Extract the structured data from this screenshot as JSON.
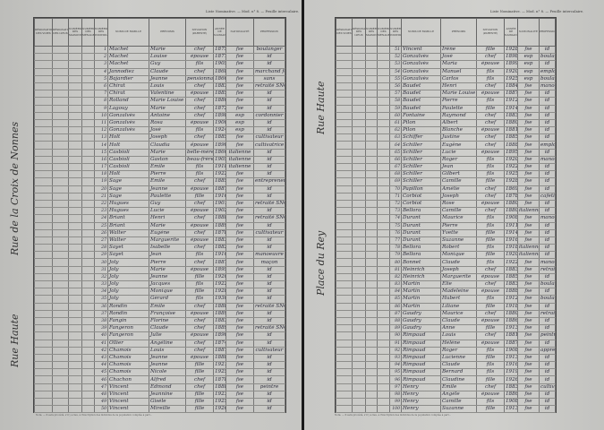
{
  "running_head": "Liste Nominative. — Mod. n° 8. — Feuille intercalaire.",
  "columns": [
    "Désignation des voies",
    "Désignation des lieux",
    "Numéros des maisons",
    "Numéros des ménages",
    "Numéros des individus",
    "Noms de famille",
    "Prénoms",
    "Situation (parenté)",
    "Année de naissance",
    "Nationalité",
    "Profession"
  ],
  "footnote": "Nota. — Il sera procédé, s'il y a lieu, à l'inscription des individus de la population comptée à part...",
  "left_page": {
    "streets": [
      "Rue de la Croix de Nonnes",
      "Rue Haute"
    ],
    "rows": [
      [
        "1",
        "Machet",
        "Marie",
        "chef",
        "1875",
        "fse",
        "boulanger"
      ],
      [
        "2",
        "Machet",
        "Louise",
        "épouse",
        "1877",
        "fse",
        "id"
      ],
      [
        "3",
        "Machet",
        "Guy",
        "fils",
        "1905",
        "fse",
        "id"
      ],
      [
        "4",
        "Jannodiez",
        "Claude",
        "chef",
        "1868",
        "fse",
        "marchand forain"
      ],
      [
        "5",
        "Bajardier",
        "Jeanne",
        "pensionnaire",
        "1866",
        "fse",
        "sans"
      ],
      [
        "6",
        "Chirat",
        "Louis",
        "chef",
        "1883",
        "fse",
        "retraité SNCF"
      ],
      [
        "7",
        "Chirat",
        "Valentine",
        "épouse",
        "1885",
        "fse",
        "id"
      ],
      [
        "8",
        "Rolland",
        "Marie Louise",
        "chef",
        "1880",
        "fse",
        "id"
      ],
      [
        "9",
        "Lagouy",
        "Marie",
        "chef",
        "1872",
        "fse",
        "id"
      ],
      [
        "10",
        "Gonzalvès",
        "Antoine",
        "chef",
        "1898",
        "esp",
        "cordonnier"
      ],
      [
        "11",
        "Gonzalvès",
        "Rosa",
        "épouse",
        "1900",
        "esp",
        "id"
      ],
      [
        "12",
        "Gonzalvès",
        "José",
        "fils",
        "1924",
        "esp",
        "id"
      ],
      [
        "13",
        "Holt",
        "Joseph",
        "chef",
        "1885",
        "fse",
        "cultivateur"
      ],
      [
        "14",
        "Holt",
        "Claudia",
        "épouse",
        "1890",
        "fse",
        "cultivatrice"
      ],
      [
        "15",
        "Casbioli",
        "Marie",
        "belle-mère",
        "1866",
        "italienne",
        "id"
      ],
      [
        "16",
        "Casbioli",
        "Gaston",
        "beau-frère",
        "1905",
        "italienne",
        "id"
      ],
      [
        "17",
        "Casbioli",
        "Emile",
        "fils",
        "1918",
        "italienne",
        "id"
      ],
      [
        "18",
        "Holt",
        "Pierre",
        "fils",
        "1922",
        "fse",
        "id"
      ],
      [
        "19",
        "Sage",
        "Emile",
        "chef",
        "1885",
        "fse",
        "entrepreneur"
      ],
      [
        "20",
        "Sage",
        "Jeanne",
        "épouse",
        "1887",
        "fse",
        "id"
      ],
      [
        "21",
        "Sage",
        "Paulette",
        "fille",
        "1916",
        "fse",
        "id"
      ],
      [
        "22",
        "Hugues",
        "Guy",
        "chef",
        "1901",
        "fse",
        "retraité SNCF"
      ],
      [
        "23",
        "Hugues",
        "Lucie",
        "épouse",
        "1902",
        "fse",
        "id"
      ],
      [
        "24",
        "Briant",
        "Henri",
        "chef",
        "1888",
        "fse",
        "retraité SNCF"
      ],
      [
        "25",
        "Briant",
        "Marie",
        "épouse",
        "1889",
        "fse",
        "id"
      ],
      [
        "26",
        "Walter",
        "Eugène",
        "chef",
        "1878",
        "fse",
        "cultivateur"
      ],
      [
        "27",
        "Walter",
        "Marguerite",
        "épouse",
        "1883",
        "fse",
        "id"
      ],
      [
        "28",
        "Sayet",
        "Isabelle",
        "chef",
        "1882",
        "fse",
        "id"
      ],
      [
        "29",
        "Sayet",
        "Jean",
        "fils",
        "1910",
        "fse",
        "manoeuvre"
      ],
      [
        "30",
        "Joly",
        "Pierre",
        "chef",
        "1887",
        "fse",
        "maçon"
      ],
      [
        "31",
        "Joly",
        "Marie",
        "épouse",
        "1895",
        "fse",
        "id"
      ],
      [
        "32",
        "Joly",
        "Jeanne",
        "fille",
        "1920",
        "fse",
        "id"
      ],
      [
        "33",
        "Joly",
        "Jacques",
        "fils",
        "1922",
        "fse",
        "id"
      ],
      [
        "34",
        "Joly",
        "Monique",
        "fille",
        "1928",
        "fse",
        "id"
      ],
      [
        "35",
        "Joly",
        "Gérard",
        "fils",
        "1930",
        "fse",
        "id"
      ],
      [
        "36",
        "Rondin",
        "Emile",
        "chef",
        "1888",
        "fse",
        "retraité SNCF"
      ],
      [
        "37",
        "Rondin",
        "Françoise",
        "épouse",
        "1889",
        "fse",
        "id"
      ],
      [
        "38",
        "Fangin",
        "Florine",
        "chef",
        "1883",
        "fse",
        "id"
      ],
      [
        "39",
        "Fangeron",
        "Claude",
        "chef",
        "1889",
        "fse",
        "retraité SNCF"
      ],
      [
        "40",
        "Fangeron",
        "Julie",
        "épouse",
        "1890",
        "fse",
        "id"
      ],
      [
        "41",
        "Ollier",
        "Angéline",
        "chef",
        "1874",
        "fse",
        "id"
      ],
      [
        "42",
        "Chamois",
        "Louis",
        "chef",
        "1887",
        "fse",
        "cultivateur"
      ],
      [
        "43",
        "Chamois",
        "Jeanne",
        "épouse",
        "1888",
        "fse",
        "id"
      ],
      [
        "44",
        "Chamois",
        "Jeanne",
        "fille",
        "1921",
        "fse",
        "id"
      ],
      [
        "45",
        "Chamois",
        "Nicole",
        "fille",
        "1925",
        "fse",
        "id"
      ],
      [
        "46",
        "Chachon",
        "Alfred",
        "chef",
        "1878",
        "fse",
        "id"
      ],
      [
        "47",
        "Vincent",
        "Edmond",
        "chef",
        "1888",
        "fse",
        "peintre"
      ],
      [
        "48",
        "Vincent",
        "Jeannine",
        "fille",
        "1923",
        "fse",
        "id"
      ],
      [
        "49",
        "Vincent",
        "Gisèle",
        "fille",
        "1925",
        "fse",
        "id"
      ],
      [
        "50",
        "Vincent",
        "Mireille",
        "fille",
        "1926",
        "fse",
        "id"
      ]
    ]
  },
  "right_page": {
    "streets": [
      "Rue Haute",
      "Place du Rey"
    ],
    "rows": [
      [
        "51",
        "Vincent",
        "Irène",
        "fille",
        "1928",
        "fse",
        "id"
      ],
      [
        "52",
        "Gonzalvès",
        "José",
        "chef",
        "1898",
        "esp",
        "boulanger"
      ],
      [
        "53",
        "Gonzalvès",
        "Maria",
        "épouse",
        "1899",
        "esp",
        "id"
      ],
      [
        "54",
        "Gonzalvès",
        "Manuel",
        "fils",
        "1920",
        "esp",
        "employé SNCF"
      ],
      [
        "55",
        "Gonzalvès",
        "Carlos",
        "fils",
        "1925",
        "esp",
        "boulanger"
      ],
      [
        "56",
        "Baudet",
        "Henri",
        "chef",
        "1884",
        "fse",
        "manoeuvre"
      ],
      [
        "57",
        "Baudet",
        "Marie Louise",
        "épouse",
        "1887",
        "fse",
        "id"
      ],
      [
        "58",
        "Baudet",
        "Pierre",
        "fils",
        "1912",
        "fse",
        "id"
      ],
      [
        "59",
        "Baudet",
        "Paulette",
        "fille",
        "1914",
        "fse",
        "id"
      ],
      [
        "60",
        "Fontaine",
        "Raymond",
        "chef",
        "1883",
        "fse",
        "id"
      ],
      [
        "61",
        "Pilon",
        "Albert",
        "chef",
        "1880",
        "fse",
        "id"
      ],
      [
        "62",
        "Pilon",
        "Blanche",
        "épouse",
        "1881",
        "fse",
        "id"
      ],
      [
        "63",
        "Schiffer",
        "Justine",
        "chef",
        "1885",
        "fse",
        "id"
      ],
      [
        "64",
        "Schiller",
        "Eugène",
        "chef",
        "1888",
        "fse",
        "employé SNCF"
      ],
      [
        "65",
        "Schiller",
        "Lucie",
        "épouse",
        "1895",
        "fse",
        "id"
      ],
      [
        "66",
        "Schiller",
        "Roger",
        "fils",
        "1920",
        "fse",
        "manoeuvre"
      ],
      [
        "67",
        "Schiller",
        "Jean",
        "fils",
        "1922",
        "fse",
        "id"
      ],
      [
        "68",
        "Schiller",
        "Gilbert",
        "fils",
        "1925",
        "fse",
        "id"
      ],
      [
        "69",
        "Schiller",
        "Camille",
        "fille",
        "1928",
        "fse",
        "id"
      ],
      [
        "70",
        "Papillon",
        "Amélie",
        "chef",
        "1869",
        "fse",
        "id"
      ],
      [
        "71",
        "Corbiot",
        "Joseph",
        "chef",
        "1878",
        "fse",
        "cafetier"
      ],
      [
        "72",
        "Corbiot",
        "Rose",
        "épouse",
        "1880",
        "fse",
        "id"
      ],
      [
        "73",
        "Bellora",
        "Camille",
        "chef",
        "1880",
        "italienne",
        "id"
      ],
      [
        "74",
        "Durant",
        "Maurice",
        "fils",
        "1908",
        "fse",
        "manoeuvre"
      ],
      [
        "75",
        "Durant",
        "Pierre",
        "fils",
        "1911",
        "fse",
        "id"
      ],
      [
        "76",
        "Durant",
        "Yvette",
        "fille",
        "1914",
        "fse",
        "id"
      ],
      [
        "77",
        "Durant",
        "Suzanne",
        "fille",
        "1916",
        "fse",
        "id"
      ],
      [
        "78",
        "Bellora",
        "Robert",
        "fils",
        "1918",
        "italienne",
        "id"
      ],
      [
        "79",
        "Bellora",
        "Monique",
        "fille",
        "1920",
        "italienne",
        "id"
      ],
      [
        "80",
        "Bonnet",
        "Claude",
        "fils",
        "1922",
        "fse",
        "manoeuvre"
      ],
      [
        "81",
        "Heinrich",
        "Joseph",
        "chef",
        "1883",
        "fse",
        "retraité SNCF"
      ],
      [
        "82",
        "Heinrich",
        "Marguerite",
        "épouse",
        "1885",
        "fse",
        "id"
      ],
      [
        "83",
        "Martin",
        "Elie",
        "chef",
        "1883",
        "fse",
        "boulanger"
      ],
      [
        "84",
        "Martin",
        "Madeleine",
        "épouse",
        "1888",
        "fse",
        "id"
      ],
      [
        "85",
        "Martin",
        "Hubert",
        "fils",
        "1912",
        "fse",
        "boulanger"
      ],
      [
        "86",
        "Martin",
        "Liliane",
        "fille",
        "1918",
        "fse",
        "id"
      ],
      [
        "87",
        "Gaudry",
        "Maurice",
        "chef",
        "1880",
        "fse",
        "retraité SNCF"
      ],
      [
        "88",
        "Gaudry",
        "Claude",
        "épouse",
        "1886",
        "fse",
        "id"
      ],
      [
        "89",
        "Gaudry",
        "Anne",
        "fille",
        "1913",
        "fse",
        "id"
      ],
      [
        "90",
        "Rimpaud",
        "Louis",
        "chef",
        "1881",
        "fse",
        "peintre"
      ],
      [
        "91",
        "Rimpaud",
        "Hélène",
        "épouse",
        "1887",
        "fse",
        "id"
      ],
      [
        "92",
        "Rimpaud",
        "Roger",
        "fils",
        "1908",
        "fse",
        "apprenti"
      ],
      [
        "93",
        "Rimpaud",
        "Lucienne",
        "fille",
        "1913",
        "fse",
        "id"
      ],
      [
        "94",
        "Rimpaud",
        "Claude",
        "fils",
        "1916",
        "fse",
        "id"
      ],
      [
        "95",
        "Rimpaud",
        "Bernard",
        "fils",
        "1919",
        "fse",
        "id"
      ],
      [
        "96",
        "Rimpaud",
        "Claudine",
        "fille",
        "1926",
        "fse",
        "id"
      ],
      [
        "97",
        "Henry",
        "Emile",
        "chef",
        "1883",
        "fse",
        "cultivateur"
      ],
      [
        "98",
        "Henry",
        "Angèle",
        "épouse",
        "1886",
        "fse",
        "id"
      ],
      [
        "99",
        "Henry",
        "Camille",
        "fils",
        "1908",
        "fse",
        "id"
      ],
      [
        "100",
        "Henry",
        "Suzanne",
        "fille",
        "1913",
        "fse",
        "id"
      ]
    ]
  }
}
